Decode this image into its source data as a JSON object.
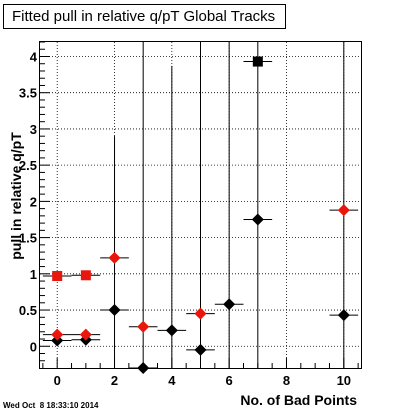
{
  "chart_data": {
    "type": "scatter",
    "title": "Fitted pull in relative q/pT  Global Tracks",
    "xlabel": "No. of Bad Points",
    "ylabel": "pull in relative q/pT",
    "xlim": [
      -0.6,
      10.6
    ],
    "ylim": [
      -0.3,
      4.2
    ],
    "x_ticks": [
      {
        "value": 0,
        "label": "0"
      },
      {
        "value": 2,
        "label": "2"
      },
      {
        "value": 4,
        "label": "4"
      },
      {
        "value": 6,
        "label": "6"
      },
      {
        "value": 8,
        "label": "8"
      },
      {
        "value": 10,
        "label": "10"
      }
    ],
    "y_ticks": [
      {
        "value": 0,
        "label": "0"
      },
      {
        "value": 0.5,
        "label": "0.5"
      },
      {
        "value": 1,
        "label": "1"
      },
      {
        "value": 1.5,
        "label": "1.5"
      },
      {
        "value": 2,
        "label": "2"
      },
      {
        "value": 2.5,
        "label": "2.5"
      },
      {
        "value": 3,
        "label": "3"
      },
      {
        "value": 3.5,
        "label": "3.5"
      },
      {
        "value": 4,
        "label": "4"
      }
    ],
    "grid": true,
    "series": [
      {
        "marker": "square",
        "color": "#000000",
        "points": [
          {
            "x": 7,
            "y": 3.93,
            "xerr": 0.5,
            "yerr": 0
          }
        ]
      },
      {
        "marker": "diamond",
        "color": "#000000",
        "points": [
          {
            "x": 0,
            "y": 0.08,
            "xerr": 0.5,
            "yerr": 0.03
          },
          {
            "x": 1,
            "y": 0.09,
            "xerr": 0.5,
            "yerr": 0.03
          },
          {
            "x": 2,
            "y": 0.5,
            "xerr": 0.5,
            "yerr": 2.4
          },
          {
            "x": 3,
            "y": -0.3,
            "xerr": 0.5,
            "yerr": 4.5
          },
          {
            "x": 4,
            "y": 0.22,
            "xerr": 0.5,
            "yerr": 3.65
          },
          {
            "x": 5,
            "y": -0.05,
            "xerr": 0.5,
            "yerr": 4.5
          },
          {
            "x": 6,
            "y": 0.58,
            "xerr": 0.5,
            "yerr": 4.5
          },
          {
            "x": 7,
            "y": 1.75,
            "xerr": 0.5,
            "yerr": 4.5
          },
          {
            "x": 10,
            "y": 0.43,
            "xerr": 0.5,
            "yerr": 4.5
          }
        ]
      },
      {
        "marker": "square",
        "color": "#e8160c",
        "points": [
          {
            "x": 0,
            "y": 0.97,
            "xerr": 0.5,
            "yerr": 0
          },
          {
            "x": 1,
            "y": 0.98,
            "xerr": 0.5,
            "yerr": 0
          }
        ]
      },
      {
        "marker": "diamond",
        "color": "#e8160c",
        "points": [
          {
            "x": 0,
            "y": 0.16,
            "xerr": 0.5,
            "yerr": 0
          },
          {
            "x": 1,
            "y": 0.16,
            "xerr": 0.5,
            "yerr": 0
          },
          {
            "x": 2,
            "y": 1.22,
            "xerr": 0.5,
            "yerr": 0
          },
          {
            "x": 3,
            "y": 0.27,
            "xerr": 0.5,
            "yerr": 0
          },
          {
            "x": 5,
            "y": 0.45,
            "xerr": 0.5,
            "yerr": 0
          },
          {
            "x": 10,
            "y": 1.88,
            "xerr": 0.5,
            "yerr": 0
          }
        ]
      }
    ]
  },
  "footer": {
    "timestamp": "Wed Oct  8 18:33:10 2014"
  }
}
